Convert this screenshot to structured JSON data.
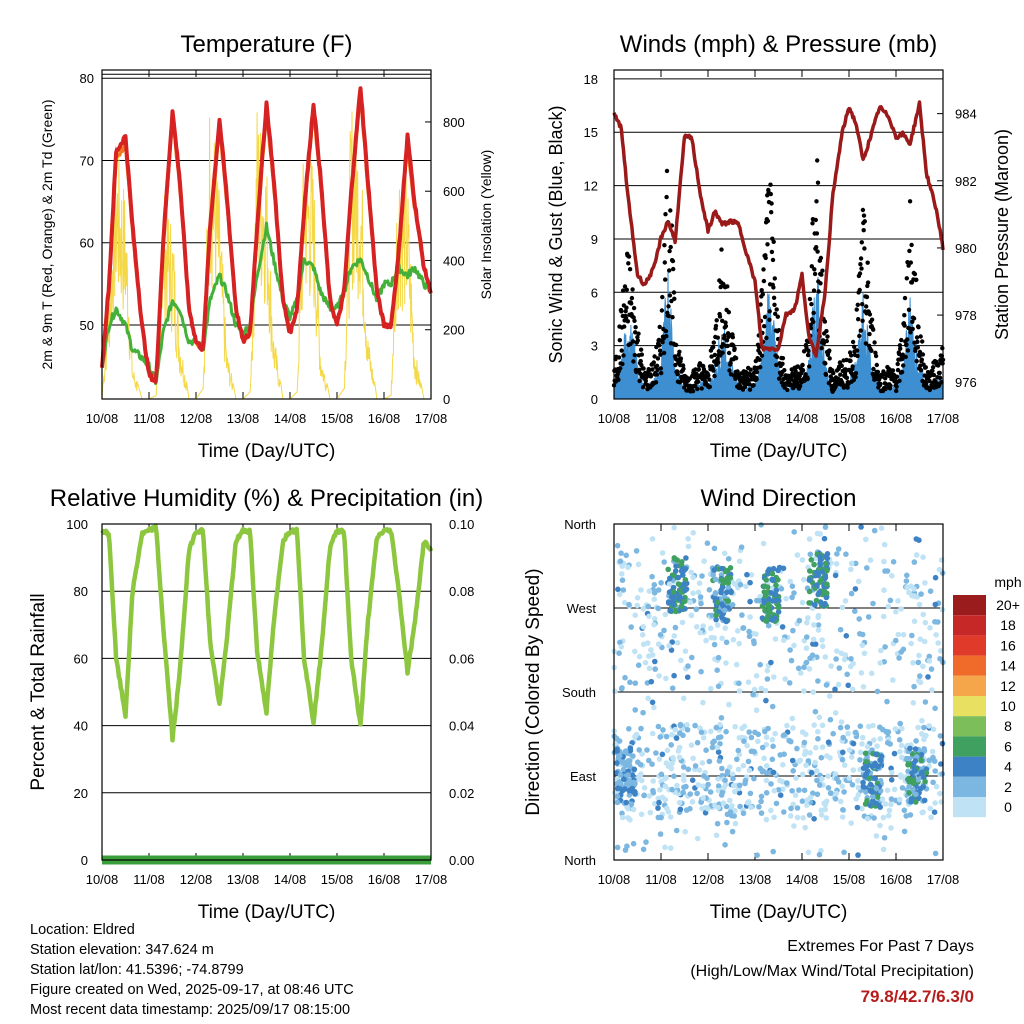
{
  "x_ticks": [
    "10/08",
    "11/08",
    "12/08",
    "13/08",
    "14/08",
    "15/08",
    "16/08",
    "17/08"
  ],
  "colors": {
    "temp_2m": "#d62222",
    "temp_9m": "#f07a1a",
    "dewpoint": "#44b03a",
    "solar": "#f5d847",
    "wind": "#3d8fd1",
    "gust": "#000000",
    "pressure": "#9a1a1a",
    "rh": "#8dc63f",
    "precip": "#3a9f3a"
  },
  "chart_data": [
    {
      "type": "line",
      "title": "Temperature (F)",
      "xlabel": "Time (Day/UTC)",
      "ylabel": "2m & 9m T (Red, Orange) & 2m Td (Green)",
      "ylabel_right": "Solar Insolation (Yellow)",
      "ylim": [
        41,
        81
      ],
      "yticks": [
        50,
        60,
        70,
        80
      ],
      "ylim_right": [
        0,
        950
      ],
      "yticks_right": [
        0,
        200,
        400,
        600,
        800
      ],
      "x": [
        0.0,
        0.15,
        0.3,
        0.5,
        0.65,
        0.85,
        1.0,
        1.15,
        1.3,
        1.5,
        1.65,
        1.85,
        2.0,
        2.15,
        2.3,
        2.5,
        2.65,
        2.85,
        3.0,
        3.15,
        3.3,
        3.5,
        3.65,
        3.85,
        4.0,
        4.15,
        4.3,
        4.5,
        4.65,
        4.85,
        5.0,
        5.15,
        5.3,
        5.5,
        5.65,
        5.85,
        6.0,
        6.15,
        6.3,
        6.5,
        6.65,
        6.85,
        7.0
      ],
      "series": [
        {
          "name": "2m T",
          "values": [
            45,
            55,
            71,
            73,
            62,
            50,
            44,
            43,
            60,
            76,
            68,
            52,
            48,
            47,
            62,
            75,
            66,
            52,
            48,
            49,
            62,
            77,
            68,
            53,
            49,
            52,
            64,
            77,
            68,
            53,
            50,
            54,
            66,
            79,
            68,
            54,
            50,
            50,
            58,
            73,
            65,
            57,
            54
          ]
        },
        {
          "name": "9m T",
          "values": [
            45,
            54,
            70,
            72,
            61,
            50,
            44,
            43,
            59,
            75,
            67,
            52,
            48,
            47,
            61,
            74,
            65,
            52,
            48,
            49,
            61,
            76,
            67,
            53,
            49,
            52,
            63,
            76,
            67,
            53,
            50,
            54,
            65,
            78,
            67,
            54,
            50,
            50,
            57,
            72,
            64,
            57,
            54
          ]
        },
        {
          "name": "2m Td",
          "values": [
            45,
            50,
            52,
            50,
            47,
            46,
            45,
            43,
            49,
            53,
            52,
            48,
            48,
            47,
            53,
            56,
            54,
            50,
            49,
            50,
            56,
            62,
            58,
            53,
            51,
            53,
            58,
            57,
            54,
            52,
            52,
            54,
            57,
            58,
            56,
            53,
            55,
            55,
            57,
            56,
            57,
            55,
            54
          ]
        },
        {
          "name": "Solar Insolation",
          "values": [
            0,
            350,
            780,
            600,
            100,
            0,
            0,
            10,
            620,
            520,
            200,
            0,
            0,
            30,
            940,
            600,
            150,
            0,
            0,
            20,
            880,
            720,
            200,
            0,
            0,
            20,
            800,
            690,
            150,
            0,
            0,
            30,
            890,
            780,
            200,
            0,
            0,
            10,
            750,
            650,
            150,
            0,
            0
          ]
        }
      ]
    },
    {
      "type": "line",
      "title": "Winds (mph) & Pressure (mb)",
      "xlabel": "Time (Day/UTC)",
      "ylabel": "Sonic Wind & Gust (Blue, Black)",
      "ylabel_right": "Station Pressure (Maroon)",
      "ylim": [
        0,
        18.5
      ],
      "yticks": [
        0,
        3,
        6,
        9,
        12,
        15,
        18
      ],
      "ylim_right": [
        975.5,
        985.3
      ],
      "yticks_right": [
        976,
        978,
        980,
        982,
        984
      ],
      "x": [
        0.0,
        0.15,
        0.3,
        0.5,
        0.65,
        0.85,
        1.0,
        1.15,
        1.3,
        1.5,
        1.65,
        1.85,
        2.0,
        2.15,
        2.3,
        2.5,
        2.65,
        2.85,
        3.0,
        3.15,
        3.3,
        3.5,
        3.65,
        3.85,
        4.0,
        4.15,
        4.3,
        4.5,
        4.65,
        4.85,
        5.0,
        5.15,
        5.3,
        5.5,
        5.65,
        5.85,
        6.0,
        6.15,
        6.3,
        6.5,
        6.65,
        6.85,
        7.0
      ],
      "series": [
        {
          "name": "Sonic Wind",
          "values": [
            0.5,
            1.5,
            3.5,
            1.5,
            0.5,
            0.8,
            1.5,
            5.5,
            1.5,
            0.5,
            0.5,
            0.8,
            0.5,
            1.5,
            3.0,
            1.5,
            0.5,
            0.6,
            0.6,
            2.0,
            4.5,
            1.5,
            0.5,
            0.6,
            0.8,
            1.5,
            5.5,
            1.5,
            0.5,
            0.7,
            0.7,
            1.5,
            4.0,
            1.5,
            0.4,
            0.6,
            0.5,
            1.5,
            4.0,
            1.5,
            0.5,
            0.8,
            1.0
          ]
        },
        {
          "name": "Gust",
          "values": [
            1.0,
            3.5,
            6.0,
            3.0,
            1.0,
            1.5,
            3.0,
            10.5,
            3.0,
            1.0,
            1.0,
            1.5,
            1.0,
            3.0,
            6.0,
            3.0,
            1.0,
            1.2,
            1.2,
            4.5,
            9.0,
            3.0,
            1.0,
            1.2,
            1.5,
            3.0,
            10.5,
            3.0,
            1.0,
            1.5,
            1.5,
            3.0,
            7.5,
            3.0,
            1.0,
            1.3,
            1.0,
            3.0,
            7.5,
            3.0,
            1.0,
            1.5,
            2.0
          ]
        },
        {
          "name": "Station Pressure",
          "values": [
            984.0,
            983.6,
            981.5,
            979.2,
            978.9,
            979.4,
            980.3,
            980.8,
            980.2,
            983.3,
            983.3,
            981.5,
            980.5,
            981.1,
            980.7,
            980.8,
            980.7,
            979.7,
            979.0,
            977.0,
            977.0,
            977.0,
            978.0,
            978.2,
            979.2,
            977.3,
            976.8,
            978.8,
            981.5,
            983.4,
            984.2,
            983.7,
            982.6,
            983.5,
            984.2,
            983.9,
            983.3,
            983.4,
            983.1,
            984.3,
            982.2,
            981.2,
            980.0
          ]
        }
      ]
    },
    {
      "type": "line",
      "title": "Relative Humidity (%) & Precipitation (in)",
      "xlabel": "Time (Day/UTC)",
      "ylabel": "Percent & Total Rainfall",
      "ylim": [
        0,
        100
      ],
      "yticks": [
        0,
        20,
        40,
        60,
        80,
        100
      ],
      "ylim_right": [
        0,
        0.1
      ],
      "yticks_right": [
        "0.00",
        "0.02",
        "0.04",
        "0.06",
        "0.08",
        "0.10"
      ],
      "x": [
        0.0,
        0.15,
        0.3,
        0.5,
        0.65,
        0.85,
        1.0,
        1.15,
        1.3,
        1.5,
        1.65,
        1.85,
        2.0,
        2.15,
        2.3,
        2.5,
        2.65,
        2.85,
        3.0,
        3.15,
        3.3,
        3.5,
        3.65,
        3.85,
        4.0,
        4.15,
        4.3,
        4.5,
        4.65,
        4.85,
        5.0,
        5.15,
        5.3,
        5.5,
        5.65,
        5.85,
        6.0,
        6.15,
        6.3,
        6.5,
        6.65,
        6.85,
        7.0
      ],
      "series": [
        {
          "name": "Relative Humidity",
          "values": [
            98,
            97,
            60,
            43,
            80,
            97,
            98,
            99,
            70,
            36,
            55,
            92,
            98,
            98,
            65,
            46,
            65,
            95,
            98,
            98,
            62,
            44,
            70,
            95,
            98,
            98,
            60,
            41,
            60,
            93,
            98,
            98,
            60,
            40,
            70,
            96,
            98,
            98,
            82,
            56,
            70,
            95,
            92
          ]
        },
        {
          "name": "Total Precipitation",
          "values": [
            0,
            0,
            0,
            0,
            0,
            0,
            0,
            0,
            0,
            0,
            0,
            0,
            0,
            0,
            0,
            0,
            0,
            0,
            0,
            0,
            0,
            0,
            0,
            0,
            0,
            0,
            0,
            0,
            0,
            0,
            0,
            0,
            0,
            0,
            0,
            0,
            0,
            0,
            0,
            0,
            0,
            0,
            0
          ]
        }
      ]
    },
    {
      "type": "scatter",
      "title": "Wind Direction",
      "xlabel": "Time (Day/UTC)",
      "ylabel": "Direction (Colored By Speed)",
      "yticks": [
        "North",
        "West",
        "South",
        "East",
        "North"
      ],
      "colorbar": {
        "title": "mph",
        "labels": [
          "20+",
          "18",
          "16",
          "14",
          "12",
          "10",
          "8",
          "6",
          "4",
          "2",
          "0"
        ],
        "colors": [
          "#9b1c1c",
          "#c62828",
          "#e03a2a",
          "#f06a2a",
          "#f5a54a",
          "#e8e060",
          "#7cbf5a",
          "#3fa060",
          "#3d82c4",
          "#7bb7e0",
          "#bfe3f5"
        ]
      },
      "clusters": [
        {
          "x": 0.25,
          "dir": 90,
          "speed": 3
        },
        {
          "x": 1.35,
          "dir": 295,
          "speed": 5
        },
        {
          "x": 2.3,
          "dir": 285,
          "speed": 4
        },
        {
          "x": 3.35,
          "dir": 285,
          "speed": 5
        },
        {
          "x": 4.35,
          "dir": 300,
          "speed": 5
        },
        {
          "x": 5.5,
          "dir": 85,
          "speed": 4
        },
        {
          "x": 6.45,
          "dir": 90,
          "speed": 4
        }
      ]
    }
  ],
  "footer": {
    "location": "Location: Eldred",
    "elevation": "Station elevation: 347.624 m",
    "latlon": "Station lat/lon: 41.5396; -74.8799",
    "created": "Figure created on Wed, 2025-09-17, at 08:46 UTC",
    "recent": "Most recent data timestamp: 2025/09/17 08:15:00",
    "extremes_title": "Extremes For Past 7 Days",
    "extremes_sub": "(High/Low/Max Wind/Total Precipitation)",
    "extremes_value": "79.8/42.7/6.3/0"
  }
}
